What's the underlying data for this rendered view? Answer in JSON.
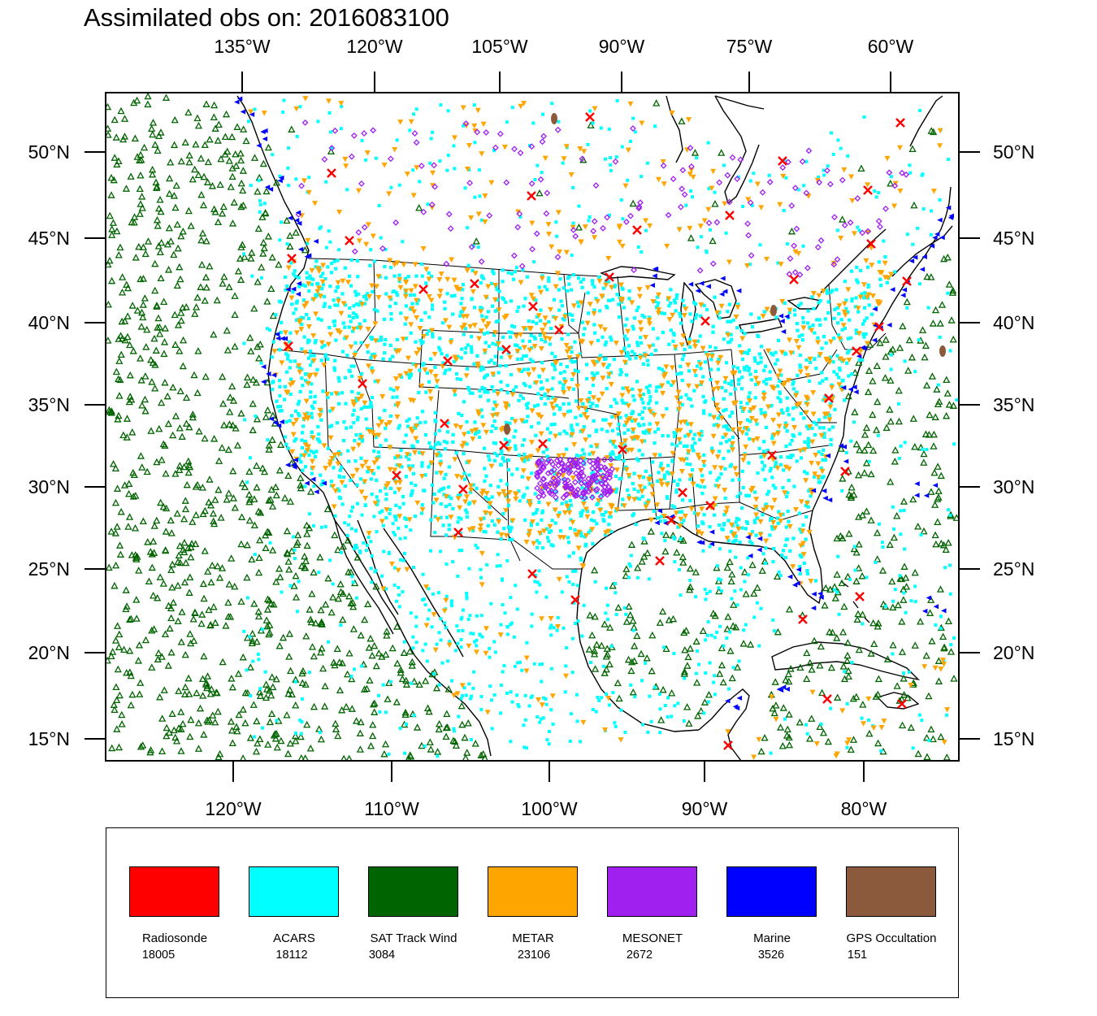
{
  "title": "Assimilated obs on: 2016083100",
  "top_axis": [
    "135°W",
    "120°W",
    "105°W",
    "90°W",
    "75°W",
    "60°W"
  ],
  "bottom_axis": [
    "120°W",
    "110°W",
    "100°W",
    "90°W",
    "80°W"
  ],
  "left_axis": [
    "50°N",
    "45°N",
    "40°N",
    "35°N",
    "30°N",
    "25°N",
    "20°N",
    "15°N"
  ],
  "right_axis": [
    "50°N",
    "45°N",
    "40°N",
    "35°N",
    "30°N",
    "25°N",
    "20°N",
    "15°N"
  ],
  "legend": [
    {
      "name": "Radiosonde",
      "count": "18005",
      "color": "#ff0000"
    },
    {
      "name": "ACARS",
      "count": "18112",
      "color": "#00ffff"
    },
    {
      "name": "SAT Track Wind",
      "count": "3084",
      "color": "#006400"
    },
    {
      "name": "METAR",
      "count": "23106",
      "color": "#ffa500"
    },
    {
      "name": "MESONET",
      "count": "2672",
      "color": "#a020f0"
    },
    {
      "name": "Marine",
      "count": "3526",
      "color": "#0000ff"
    },
    {
      "name": "GPS Occultation",
      "count": "151",
      "color": "#8b5a3c"
    }
  ],
  "marker_icons": {
    "radiosonde": "x-cross-icon",
    "acars": "square-dot-icon",
    "sat_track_wind": "triangle-outline-icon",
    "metar": "down-triangle-icon",
    "mesonet": "diamond-icon",
    "marine": "left-triangle-icon",
    "gps": "ellipse-icon"
  }
}
